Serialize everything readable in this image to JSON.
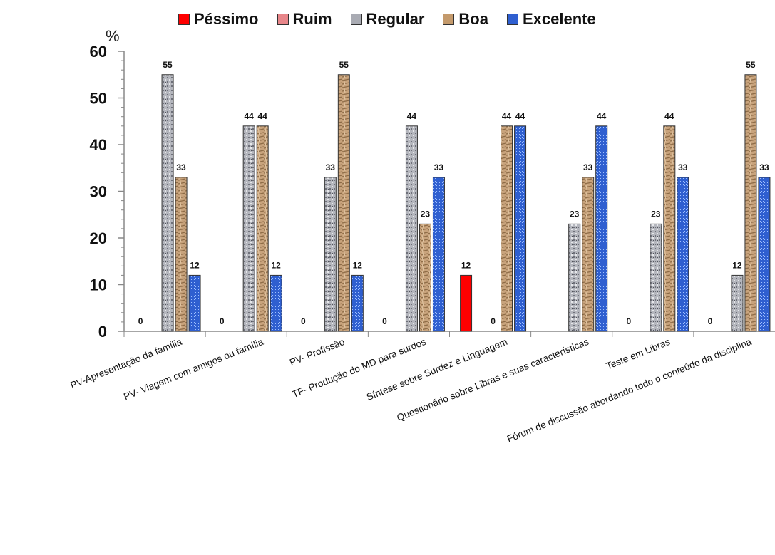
{
  "chart_data": {
    "type": "bar",
    "ylabel": "%",
    "ylim": [
      0,
      60
    ],
    "yticks": [
      "0",
      "10",
      "20",
      "30",
      "40",
      "50",
      "60"
    ],
    "legend_position": "top",
    "categories": [
      "PV-Apresentação da família",
      "PV- Viagem com amigos ou família",
      "PV- Profissão",
      "TF- Produção do MD para surdos",
      "Síntese sobre Surdez e Linguagem",
      "Questionário sobre Libras e suas características",
      "Teste em Libras",
      "Fórum de discussão abordando todo o conteúdo da disciplina"
    ],
    "series": [
      {
        "name": "Péssimo",
        "color": "#ff0000",
        "values": [
          0,
          0,
          0,
          0,
          12,
          0,
          0,
          0
        ],
        "labels": [
          "0",
          "0",
          "0",
          "0",
          "12",
          "",
          "0",
          "0"
        ]
      },
      {
        "name": "Ruim",
        "color": "#e8868a",
        "values": [
          0,
          0,
          0,
          0,
          0,
          0,
          0,
          0
        ],
        "labels": [
          "",
          "",
          "",
          "",
          "",
          "",
          "",
          ""
        ]
      },
      {
        "name": "Regular",
        "color": "#a9abb3",
        "values": [
          55,
          44,
          33,
          44,
          0,
          23,
          23,
          12
        ],
        "labels": [
          "55",
          "44",
          "33",
          "44",
          "0",
          "23",
          "23",
          "12"
        ]
      },
      {
        "name": "Boa",
        "color": "#c49a6c",
        "values": [
          33,
          44,
          55,
          23,
          44,
          33,
          44,
          55
        ],
        "labels": [
          "33",
          "44",
          "55",
          "23",
          "44",
          "33",
          "44",
          "55"
        ]
      },
      {
        "name": "Excelente",
        "color": "#2f5fd0",
        "values": [
          12,
          12,
          12,
          33,
          44,
          44,
          33,
          33
        ],
        "labels": [
          "12",
          "12",
          "12",
          "33",
          "44",
          "44",
          "33",
          "33"
        ]
      }
    ]
  }
}
